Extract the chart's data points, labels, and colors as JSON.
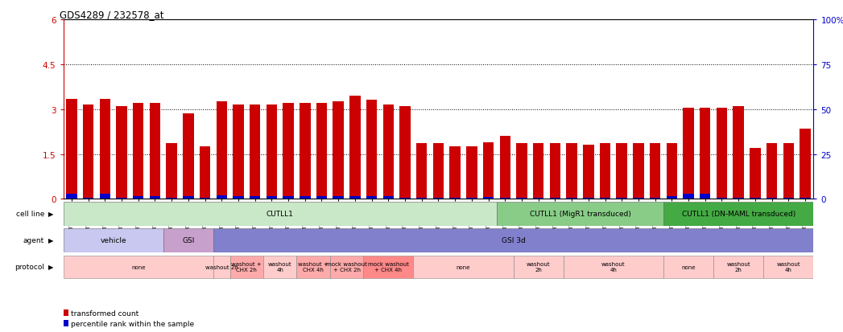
{
  "title": "GDS4289 / 232578_at",
  "samples": [
    "GSM731500",
    "GSM731501",
    "GSM731502",
    "GSM731503",
    "GSM731504",
    "GSM731505",
    "GSM731518",
    "GSM731519",
    "GSM731520",
    "GSM731506",
    "GSM731507",
    "GSM731508",
    "GSM731509",
    "GSM731510",
    "GSM731511",
    "GSM731512",
    "GSM731513",
    "GSM731514",
    "GSM731515",
    "GSM731516",
    "GSM731517",
    "GSM731521",
    "GSM731522",
    "GSM731523",
    "GSM731524",
    "GSM731525",
    "GSM731526",
    "GSM731527",
    "GSM731528",
    "GSM731529",
    "GSM731531",
    "GSM731532",
    "GSM731533",
    "GSM731534",
    "GSM731535",
    "GSM731536",
    "GSM731537",
    "GSM731538",
    "GSM731539",
    "GSM731540",
    "GSM731541",
    "GSM731542",
    "GSM731543",
    "GSM731544",
    "GSM731545"
  ],
  "red_values": [
    3.35,
    3.15,
    3.35,
    3.1,
    3.2,
    3.2,
    1.85,
    2.85,
    1.75,
    3.25,
    3.15,
    3.15,
    3.15,
    3.2,
    3.2,
    3.2,
    3.25,
    3.45,
    3.3,
    3.15,
    3.1,
    1.85,
    1.85,
    1.75,
    1.75,
    1.9,
    2.1,
    1.85,
    1.85,
    1.85,
    1.85,
    1.8,
    1.85,
    1.85,
    1.85,
    1.85,
    1.85,
    3.05,
    3.05,
    3.05,
    3.1,
    1.7,
    1.85,
    1.85,
    2.35
  ],
  "blue_values": [
    0.18,
    0.05,
    0.18,
    0.05,
    0.08,
    0.08,
    0.05,
    0.1,
    0.05,
    0.12,
    0.08,
    0.08,
    0.08,
    0.08,
    0.08,
    0.08,
    0.08,
    0.08,
    0.08,
    0.08,
    0.05,
    0.05,
    0.05,
    0.05,
    0.05,
    0.07,
    0.05,
    0.05,
    0.05,
    0.05,
    0.05,
    0.05,
    0.05,
    0.05,
    0.05,
    0.05,
    0.08,
    0.18,
    0.18,
    0.05,
    0.05,
    0.05,
    0.05,
    0.05,
    0.05
  ],
  "ylim_left": [
    0,
    6
  ],
  "ylim_right": [
    0,
    100
  ],
  "yticks_left": [
    0,
    1.5,
    3.0,
    4.5,
    6.0
  ],
  "yticks_right": [
    0,
    25,
    50,
    75,
    100
  ],
  "ytick_labels_left": [
    "0",
    "1.5",
    "3",
    "4.5",
    "6"
  ],
  "ytick_labels_right": [
    "0",
    "25",
    "50",
    "75",
    "100%"
  ],
  "hlines": [
    1.5,
    3.0,
    4.5
  ],
  "bar_color_red": "#cc0000",
  "bar_color_blue": "#0000cc",
  "cell_line_groups": [
    {
      "label": "CUTLL1",
      "start": 0,
      "end": 26,
      "color": "#c8e8c8"
    },
    {
      "label": "CUTLL1 (MigR1 transduced)",
      "start": 26,
      "end": 36,
      "color": "#88cc88"
    },
    {
      "label": "CUTLL1 (DN-MAML transduced)",
      "start": 36,
      "end": 45,
      "color": "#44aa44"
    }
  ],
  "agent_groups": [
    {
      "label": "vehicle",
      "start": 0,
      "end": 6,
      "color": "#c8c8f0"
    },
    {
      "label": "GSI",
      "start": 6,
      "end": 9,
      "color": "#c8a0cc"
    },
    {
      "label": "GSI 3d",
      "start": 9,
      "end": 45,
      "color": "#8080cc"
    }
  ],
  "protocol_groups": [
    {
      "label": "none",
      "start": 0,
      "end": 9,
      "color": "#ffcccc"
    },
    {
      "label": "washout 2h",
      "start": 9,
      "end": 10,
      "color": "#ffcccc"
    },
    {
      "label": "washout +\nCHX 2h",
      "start": 10,
      "end": 12,
      "color": "#ffaaaa"
    },
    {
      "label": "washout\n4h",
      "start": 12,
      "end": 14,
      "color": "#ffcccc"
    },
    {
      "label": "washout +\nCHX 4h",
      "start": 14,
      "end": 16,
      "color": "#ffaaaa"
    },
    {
      "label": "mock washout\n+ CHX 2h",
      "start": 16,
      "end": 18,
      "color": "#ffaaaa"
    },
    {
      "label": "mock washout\n+ CHX 4h",
      "start": 18,
      "end": 21,
      "color": "#ff8888"
    },
    {
      "label": "none",
      "start": 21,
      "end": 27,
      "color": "#ffcccc"
    },
    {
      "label": "washout\n2h",
      "start": 27,
      "end": 30,
      "color": "#ffcccc"
    },
    {
      "label": "washout\n4h",
      "start": 30,
      "end": 36,
      "color": "#ffcccc"
    },
    {
      "label": "none",
      "start": 36,
      "end": 39,
      "color": "#ffcccc"
    },
    {
      "label": "washout\n2h",
      "start": 39,
      "end": 42,
      "color": "#ffcccc"
    },
    {
      "label": "washout\n4h",
      "start": 42,
      "end": 45,
      "color": "#ffcccc"
    }
  ],
  "legend_red": "transformed count",
  "legend_blue": "percentile rank within the sample",
  "background_color": "#ffffff"
}
